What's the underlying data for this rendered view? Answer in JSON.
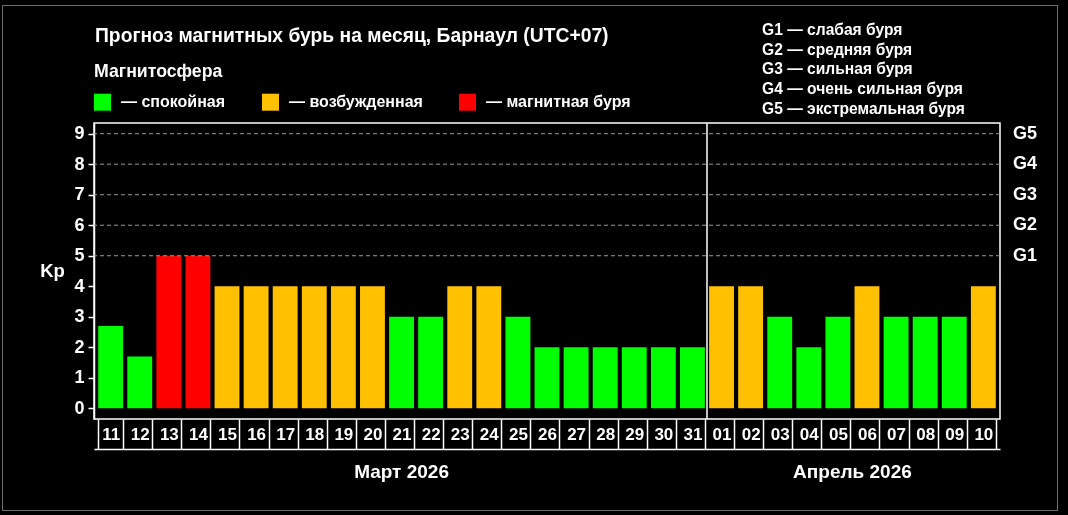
{
  "chart_data": {
    "type": "bar",
    "title": "Прогноз магнитных бурь на месяц, Барнаул (UTC+07)",
    "ylabel": "Kp",
    "legend_title": "Магнитосфера",
    "legend": "top left",
    "categories": [
      "11",
      "12",
      "13",
      "14",
      "15",
      "16",
      "17",
      "18",
      "19",
      "20",
      "21",
      "22",
      "23",
      "24",
      "25",
      "26",
      "27",
      "28",
      "29",
      "30",
      "31",
      "01",
      "02",
      "03",
      "04",
      "05",
      "06",
      "07",
      "08",
      "09",
      "10"
    ],
    "series": [
      {
        "name": "— спокойная",
        "color": "#00ff00",
        "values": [
          2.7,
          1.7,
          null,
          null,
          null,
          null,
          null,
          null,
          null,
          null,
          3,
          3,
          null,
          null,
          3,
          2,
          2,
          2,
          2,
          2,
          2,
          null,
          null,
          3,
          2,
          3,
          null,
          3,
          3,
          3,
          null
        ]
      },
      {
        "name": "— возбужденная",
        "color": "#ffc000",
        "values": [
          null,
          null,
          null,
          null,
          4,
          4,
          4,
          4,
          4,
          4,
          null,
          null,
          4,
          4,
          null,
          null,
          null,
          null,
          null,
          null,
          null,
          4,
          4,
          null,
          null,
          null,
          4,
          null,
          null,
          null,
          4
        ]
      },
      {
        "name": "— магнитная буря",
        "color": "#ff0000",
        "values": [
          null,
          null,
          5,
          5,
          null,
          null,
          null,
          null,
          null,
          null,
          null,
          null,
          null,
          null,
          null,
          null,
          null,
          null,
          null,
          null,
          null,
          null,
          null,
          null,
          null,
          null,
          null,
          null,
          null,
          null,
          null
        ]
      }
    ],
    "ylim": [
      -0.35,
      9.35
    ],
    "yticks": [
      0,
      1,
      2,
      3,
      4,
      5,
      6,
      7,
      8,
      9
    ],
    "ref_lines": [
      {
        "axis": "y",
        "value": 5,
        "label": "G1",
        "color": "#999999",
        "line_style": "dashed"
      },
      {
        "axis": "y",
        "value": 6,
        "label": "G2",
        "color": "#999999",
        "line_style": "dashed"
      },
      {
        "axis": "y",
        "value": 7,
        "label": "G3",
        "color": "#999999",
        "line_style": "dashed"
      },
      {
        "axis": "y",
        "value": 8,
        "label": "G4",
        "color": "#999999",
        "line_style": "dashed"
      },
      {
        "axis": "y",
        "value": 9,
        "label": "G5",
        "color": "#999999",
        "line_style": "dashed"
      },
      {
        "axis": "x",
        "value": "01",
        "color": "#ffffff"
      }
    ],
    "annotations": [
      "G1 — слабая буря",
      "G2 — средняя буря",
      "G3 — сильная буря",
      "G4 — очень сильная буря",
      "G5 — экстремальная буря",
      "Март 2026",
      "Апрель 2026"
    ]
  }
}
